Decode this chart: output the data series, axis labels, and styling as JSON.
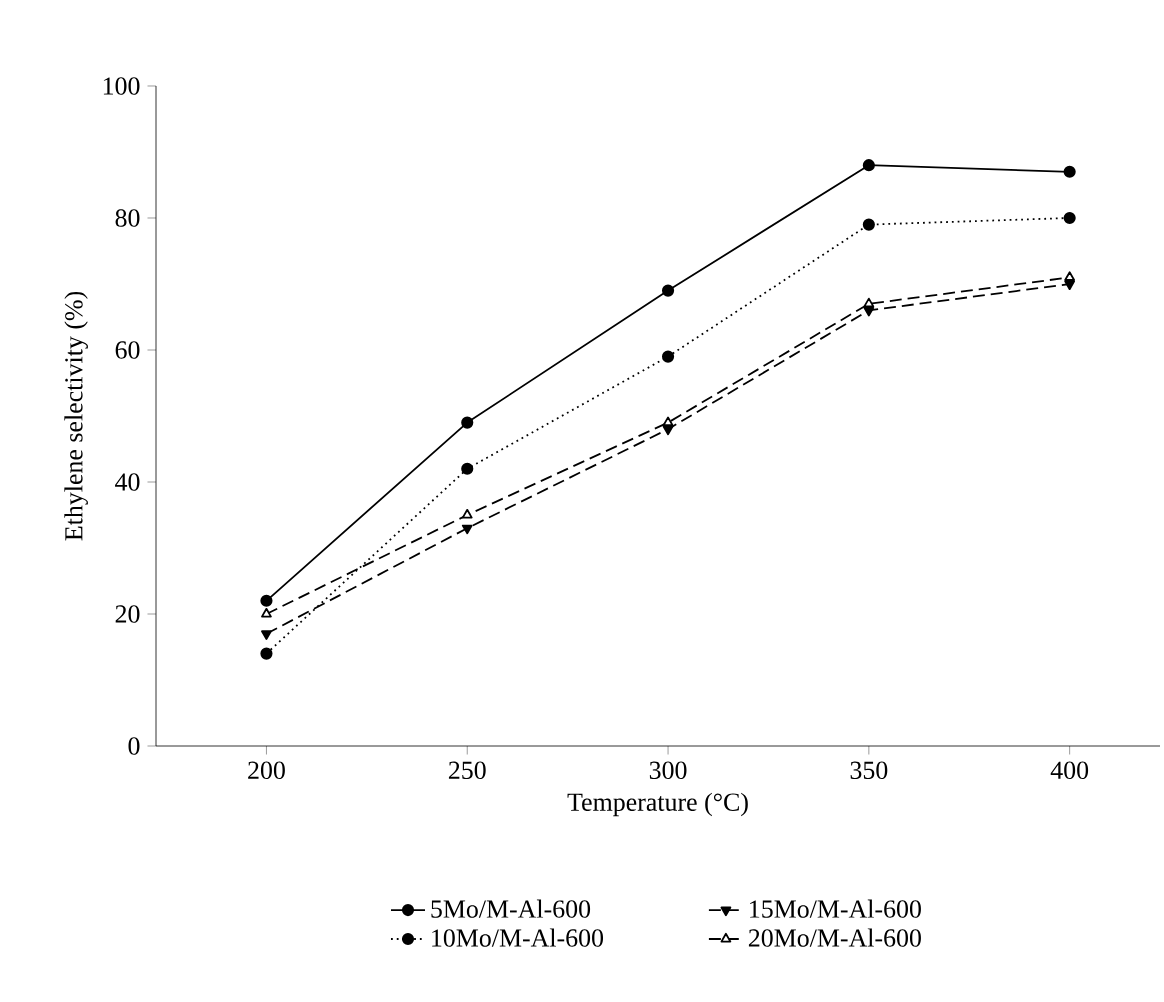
{
  "chart_data": {
    "type": "line",
    "xlabel": "Temperature (°C)",
    "ylabel": "Ethylene selectivity (%)",
    "x": [
      200,
      250,
      300,
      350,
      400
    ],
    "xlim": [
      172.5,
      422.5
    ],
    "xticks": [
      200,
      250,
      300,
      350,
      400
    ],
    "ylim": [
      0,
      100
    ],
    "yticks": [
      0,
      20,
      40,
      60,
      80,
      100
    ],
    "grid": false,
    "legend": "bottom",
    "series": [
      {
        "name": "5Mo/M-Al-600",
        "color": "#000000",
        "marker": "circle",
        "line_style": "solid",
        "values": [
          22,
          49,
          69,
          88,
          87
        ]
      },
      {
        "name": "10Mo/M-Al-600",
        "color": "#000000",
        "marker": "circle",
        "line_style": "dotted",
        "values": [
          14,
          42,
          59,
          79,
          80
        ]
      },
      {
        "name": "15Mo/M-Al-600",
        "color": "#000000",
        "marker": "triangle down",
        "line_style": "dashed",
        "values": [
          17,
          33,
          48,
          66,
          70
        ]
      },
      {
        "name": "20Mo/M-Al-600",
        "color": "#000000",
        "marker": "triangle",
        "line_style": "dashed",
        "values": [
          20,
          35,
          49,
          67,
          71
        ]
      }
    ]
  }
}
